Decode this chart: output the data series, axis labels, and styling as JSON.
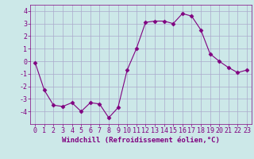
{
  "x": [
    0,
    1,
    2,
    3,
    4,
    5,
    6,
    7,
    8,
    9,
    10,
    11,
    12,
    13,
    14,
    15,
    16,
    17,
    18,
    19,
    20,
    21,
    22,
    23
  ],
  "y": [
    -0.1,
    -2.3,
    -3.5,
    -3.6,
    -3.3,
    -4.0,
    -3.3,
    -3.4,
    -4.5,
    -3.7,
    -0.7,
    1.0,
    3.1,
    3.2,
    3.2,
    3.0,
    3.8,
    3.6,
    2.5,
    0.6,
    0.0,
    -0.5,
    -0.9,
    -0.7
  ],
  "xlim": [
    -0.5,
    23.5
  ],
  "ylim": [
    -5,
    4.5
  ],
  "yticks": [
    -4,
    -3,
    -2,
    -1,
    0,
    1,
    2,
    3,
    4
  ],
  "xticks": [
    0,
    1,
    2,
    3,
    4,
    5,
    6,
    7,
    8,
    9,
    10,
    11,
    12,
    13,
    14,
    15,
    16,
    17,
    18,
    19,
    20,
    21,
    22,
    23
  ],
  "xlabel": "Windchill (Refroidissement éolien,°C)",
  "line_color": "#800080",
  "marker": "D",
  "marker_size": 2.5,
  "bg_color": "#cce8e8",
  "grid_color": "#aaaacc",
  "tick_color": "#800080",
  "label_color": "#800080",
  "xlabel_fontsize": 6.5,
  "tick_fontsize": 6.0
}
